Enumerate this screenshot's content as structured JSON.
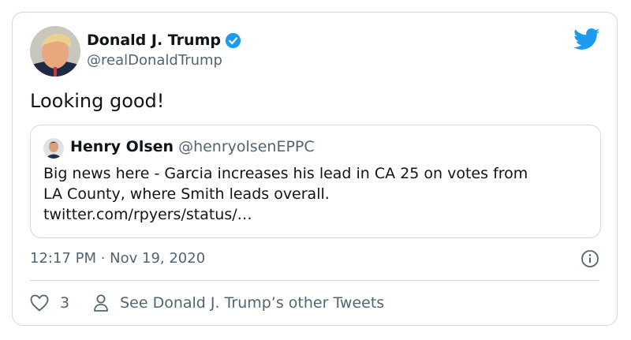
{
  "tweet": {
    "author_name": "Donald J. Trump",
    "author_handle": "@realDonaldTrump",
    "verified": true,
    "text": "Looking good!",
    "timestamp": "12:17 PM · Nov 19, 2020",
    "like_count": "3",
    "see_other_label": "See Donald J. Trump’s other Tweets"
  },
  "quote": {
    "author_name": "Henry Olsen",
    "author_handle": "@henryolsenEPPC",
    "text_lines": [
      "Big news here - Garcia increases his lead in CA 25 on votes from",
      "LA County, where Smith leads overall.",
      "twitter.com/rpyers/status/…"
    ]
  },
  "icons": {
    "brand": "twitter-bird-icon",
    "verified": "verified-badge-icon",
    "info": "info-icon",
    "like": "heart-icon",
    "profile": "person-icon"
  },
  "colors": {
    "brand_blue": "#1d9bf0",
    "secondary_text": "#536471",
    "border": "#cfd9de"
  }
}
